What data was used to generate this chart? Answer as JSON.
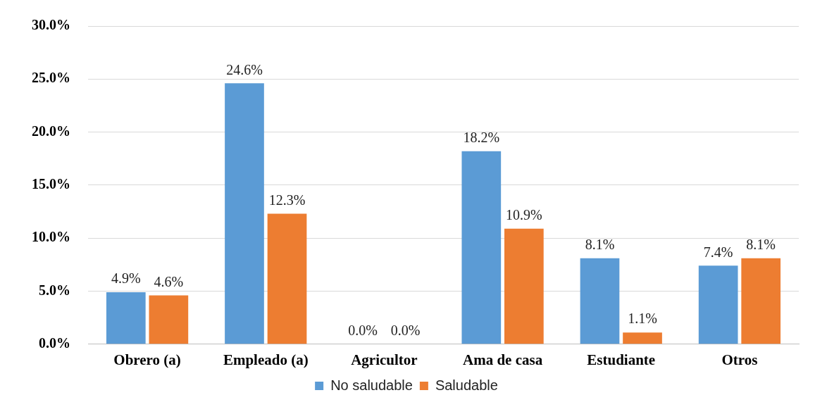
{
  "chart_data": {
    "type": "bar",
    "categories": [
      "Obrero (a)",
      "Empleado (a)",
      "Agricultor",
      "Ama de casa",
      "Estudiante",
      "Otros"
    ],
    "series": [
      {
        "name": "No saludable",
        "color": "#5b9bd5",
        "values": [
          4.9,
          24.6,
          0.0,
          18.2,
          8.1,
          7.4
        ]
      },
      {
        "name": "Saludable",
        "color": "#ed7d31",
        "values": [
          4.6,
          12.3,
          0.0,
          10.9,
          1.1,
          8.1
        ]
      }
    ],
    "ylim": [
      0,
      30
    ],
    "yticks": [
      {
        "value": 0,
        "label": "0.0%"
      },
      {
        "value": 5,
        "label": "5.0%"
      },
      {
        "value": 10,
        "label": "10.0%"
      },
      {
        "value": 15,
        "label": "15.0%"
      },
      {
        "value": 20,
        "label": "20.0%"
      },
      {
        "value": 25,
        "label": "25.0%"
      },
      {
        "value": 30,
        "label": "30.0%"
      }
    ],
    "value_labels": [
      [
        "4.9%",
        "24.6%",
        "0.0%",
        "18.2%",
        "8.1%",
        "7.4%"
      ],
      [
        "4.6%",
        "12.3%",
        "0.0%",
        "10.9%",
        "1.1%",
        "8.1%"
      ]
    ],
    "grid": "y",
    "legend": "bottom"
  }
}
